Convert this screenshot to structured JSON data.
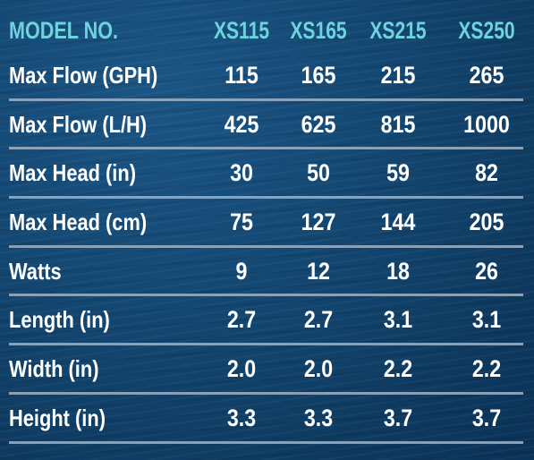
{
  "table": {
    "header": {
      "label": "MODEL NO.",
      "models": [
        "XS115",
        "XS165",
        "XS215",
        "XS250"
      ]
    },
    "rows": [
      {
        "label": "Max Flow (GPH)",
        "values": [
          "115",
          "165",
          "215",
          "265"
        ]
      },
      {
        "label": "Max Flow (L/H)",
        "values": [
          "425",
          "625",
          "815",
          "1000"
        ]
      },
      {
        "label": "Max Head (in)",
        "values": [
          "30",
          "50",
          "59",
          "82"
        ]
      },
      {
        "label": "Max Head (cm)",
        "values": [
          "75",
          "127",
          "144",
          "205"
        ]
      },
      {
        "label": "Watts",
        "values": [
          "9",
          "12",
          "18",
          "26"
        ]
      },
      {
        "label": "Length (in)",
        "values": [
          "2.7",
          "2.7",
          "3.1",
          "3.1"
        ]
      },
      {
        "label": "Width (in)",
        "values": [
          "2.0",
          "2.0",
          "2.2",
          "2.2"
        ]
      },
      {
        "label": "Height (in)",
        "values": [
          "3.3",
          "3.3",
          "3.7",
          "3.7"
        ]
      }
    ]
  },
  "colors": {
    "background": "#134873",
    "header_text": "#6fd3de",
    "body_text": "#ffffff",
    "divider": "#9fb3c6"
  }
}
